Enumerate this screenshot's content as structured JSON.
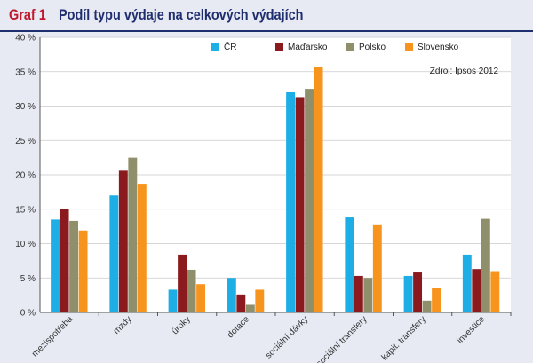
{
  "header": {
    "graf_label": "Graf 1",
    "title": "Podíl typu výdaje na celkových výdajích"
  },
  "colors": {
    "background": "#e7eaf3",
    "header_label": "#c0172a",
    "header_title": "#1f2e6e"
  },
  "chart_data": {
    "type": "bar",
    "title": "Podíl typu výdaje na celkových výdajích",
    "categories": [
      "mezispotřeba",
      "mzdy",
      "úroky",
      "dotace",
      "sociální dávky",
      "sociální transfery",
      "kapit. transfery",
      "investice"
    ],
    "series": [
      {
        "name": "ČR",
        "color": "#1eaee6",
        "values": [
          13.5,
          17.0,
          3.3,
          5.0,
          32.0,
          13.8,
          5.3,
          8.4
        ]
      },
      {
        "name": "Maďarsko",
        "color": "#8b1a1e",
        "values": [
          15.0,
          20.6,
          8.4,
          2.6,
          31.3,
          5.3,
          5.8,
          6.3
        ]
      },
      {
        "name": "Polsko",
        "color": "#8f8f6c",
        "values": [
          13.3,
          22.5,
          6.2,
          1.1,
          32.5,
          5.0,
          1.7,
          13.6
        ]
      },
      {
        "name": "Slovensko",
        "color": "#f7941d",
        "values": [
          11.9,
          18.7,
          4.1,
          3.3,
          35.7,
          12.8,
          3.6,
          6.0
        ]
      }
    ],
    "ylim": [
      0,
      40
    ],
    "yticks": [
      0,
      5,
      10,
      15,
      20,
      25,
      30,
      35,
      40
    ],
    "ytick_labels": [
      "0 %",
      "5 %",
      "10 %",
      "15 %",
      "20 %",
      "25 %",
      "30 %",
      "35 %",
      "40 %"
    ],
    "xlabel": "",
    "ylabel": "",
    "grid": true,
    "legend_position": "top-right",
    "source": "Zdroj: Ipsos 2012"
  }
}
